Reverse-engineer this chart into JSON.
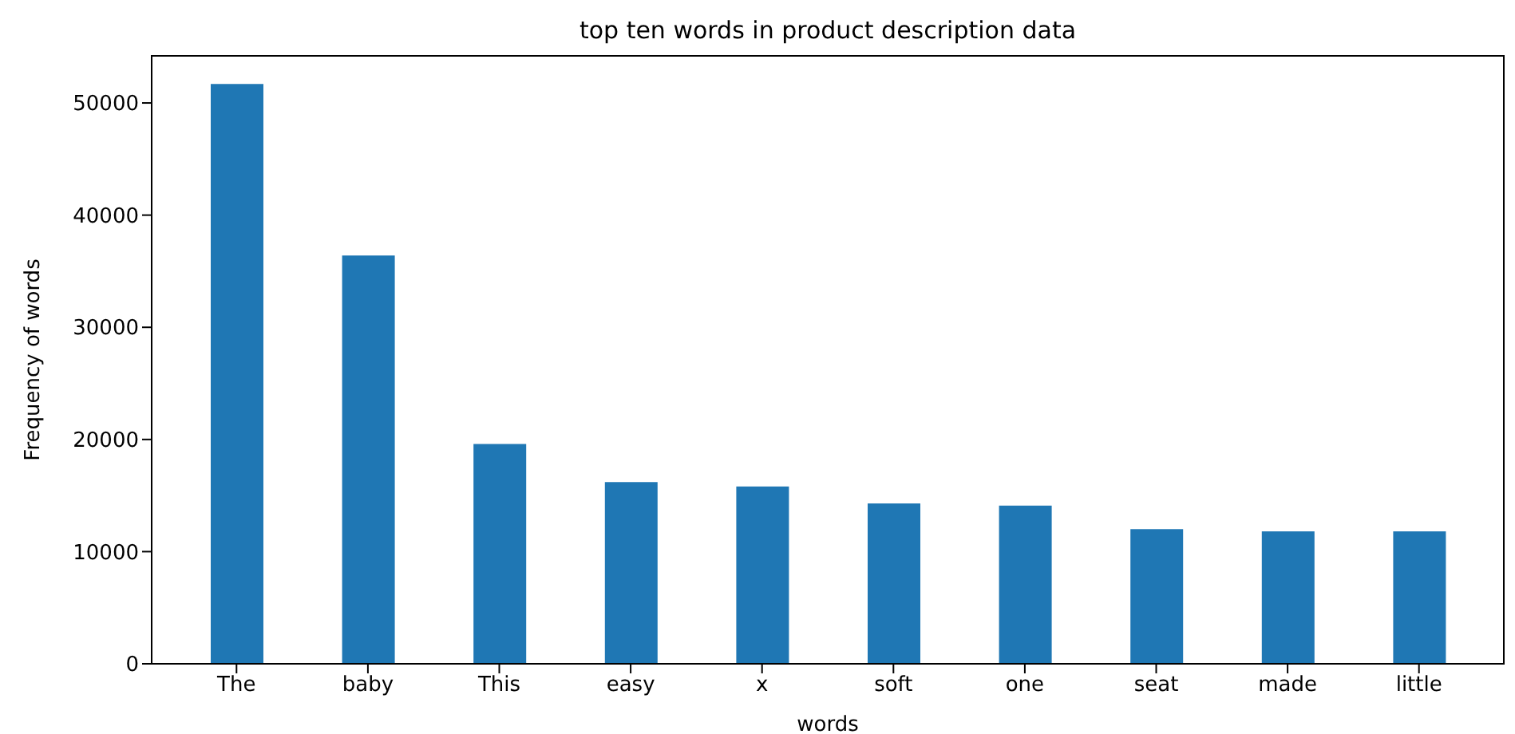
{
  "chart_data": {
    "type": "bar",
    "title": "top ten words in product description data",
    "xlabel": "words",
    "ylabel": "Frequency of words",
    "categories": [
      "The",
      "baby",
      "This",
      "easy",
      "x",
      "soft",
      "one",
      "seat",
      "made",
      "little"
    ],
    "values": [
      51700,
      36400,
      19600,
      16200,
      15800,
      14300,
      14100,
      12000,
      11800,
      11800
    ],
    "color": "#1f77b4",
    "ylim": [
      0,
      54200
    ],
    "yticks": [
      0,
      10000,
      20000,
      30000,
      40000,
      50000
    ],
    "grid": false,
    "legend": false
  }
}
